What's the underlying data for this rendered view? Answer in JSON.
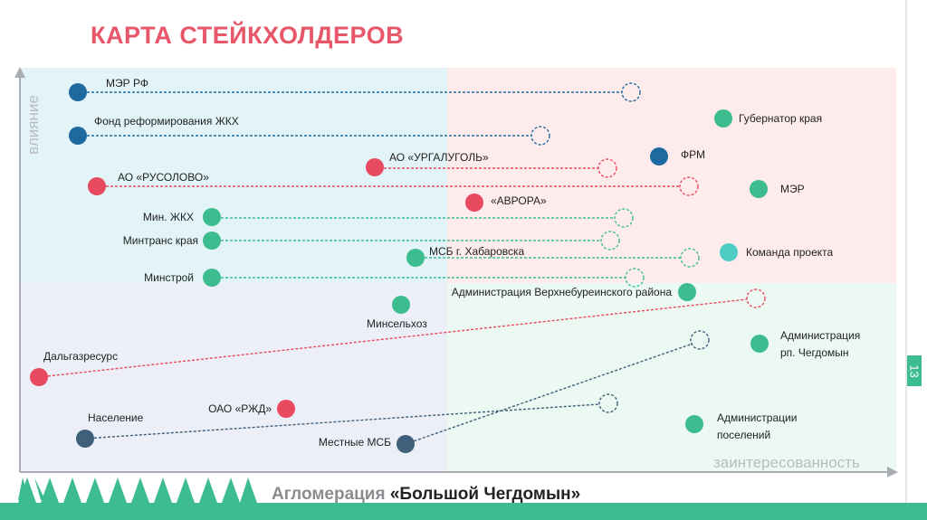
{
  "title": "КАРТА СТЕЙКХОЛДЕРОВ",
  "axes": {
    "y_label": "влияние",
    "x_label": "заинтересованность"
  },
  "colors": {
    "blue": "#1e6aa0",
    "red": "#e84a5f",
    "green": "#3dbd8f",
    "teal": "#4ecdc4",
    "slate": "#3f5f7a",
    "title": "#e8566a"
  },
  "stakeholders": [
    {
      "name": "МЭР РФ"
    },
    {
      "name": "Фонд реформирования ЖКХ"
    },
    {
      "name": "АО «УРГАЛУГОЛЬ»"
    },
    {
      "name": "АО «РУСОЛОВО»"
    },
    {
      "name": "ФРМ"
    },
    {
      "name": "Губернатор края"
    },
    {
      "name": "МЭР"
    },
    {
      "name": "«АВРОРА»"
    },
    {
      "name": "Мин. ЖКХ"
    },
    {
      "name": "Минтранс края"
    },
    {
      "name": "МСБ г. Хабаровска"
    },
    {
      "name": "Команда проекта"
    },
    {
      "name": "Минстрой"
    },
    {
      "name": "Администрация Верхнебуреинского района"
    },
    {
      "name": "Минсельхоз"
    },
    {
      "name": "Дальгазресурс"
    },
    {
      "name": "Администрация",
      "name2": "рп. Чегдомын"
    },
    {
      "name": "Население"
    },
    {
      "name": "ОАО «РЖД»"
    },
    {
      "name": "Местные МСБ"
    },
    {
      "name": "Администрации",
      "name2": "поселений"
    }
  ],
  "footer": {
    "prefix": "Агломерация",
    "name": "«Большой Чегдомын»"
  },
  "page_number": "13"
}
